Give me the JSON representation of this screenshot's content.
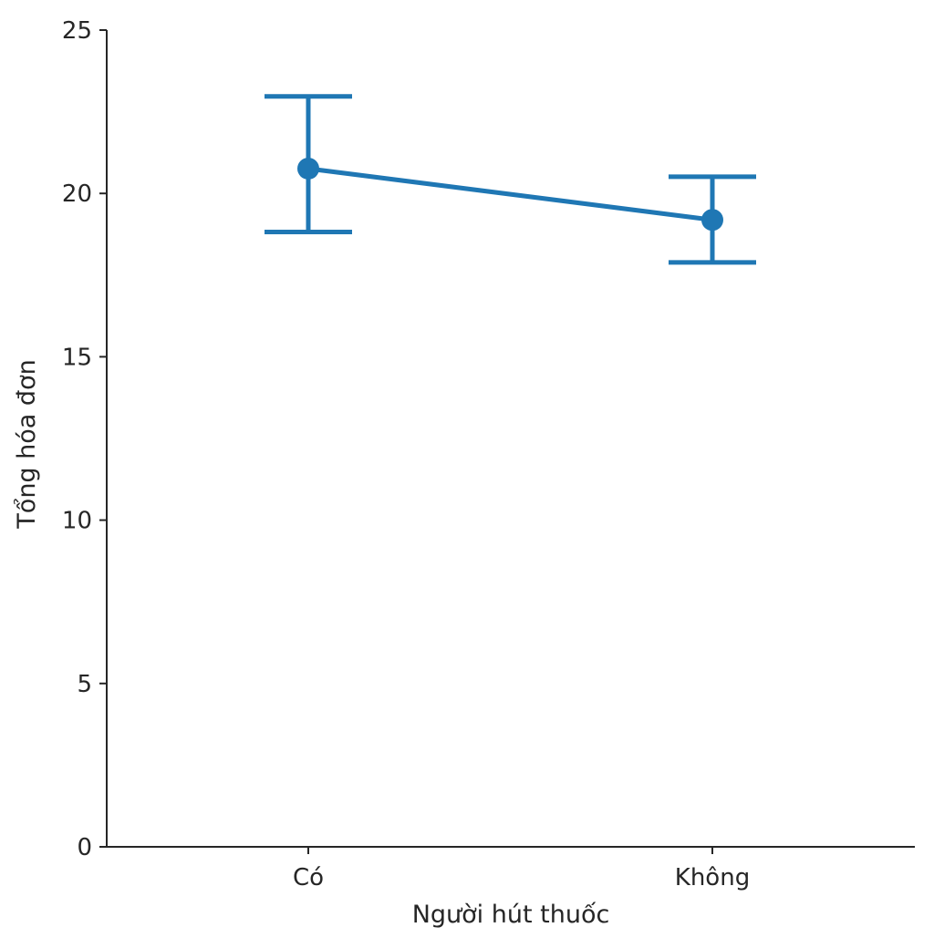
{
  "chart_data": {
    "type": "line",
    "subtype": "pointplot-with-error-bars",
    "xlabel": "Người hút thuốc",
    "ylabel": "Tổng hóa đơn",
    "categories": [
      "Có",
      "Không"
    ],
    "series": [
      {
        "values": [
          20.76,
          19.19
        ],
        "ci_low": [
          18.82,
          17.89
        ],
        "ci_high": [
          22.97,
          20.51
        ]
      }
    ],
    "ylim": [
      0,
      25
    ],
    "yticks": [
      0,
      5,
      10,
      15,
      20,
      25
    ],
    "grid": false,
    "color": "#1f77b4"
  }
}
